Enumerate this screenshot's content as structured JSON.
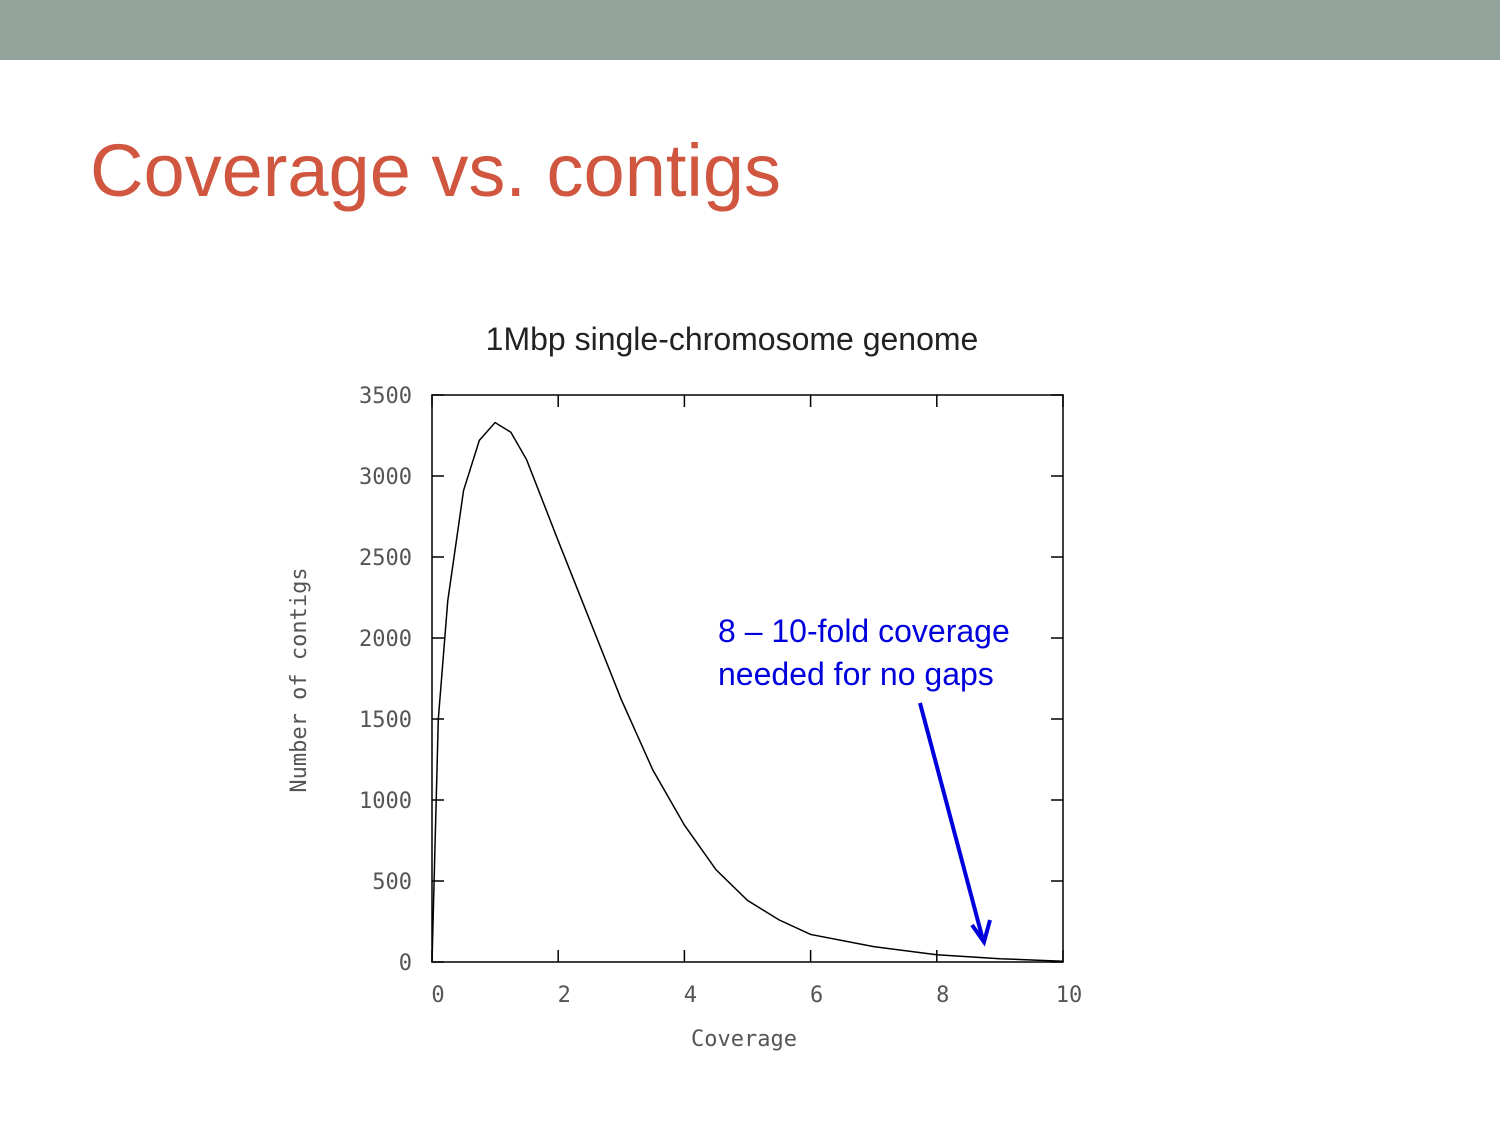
{
  "title": "Coverage vs. contigs",
  "chart_data": {
    "type": "line",
    "title": "1Mbp single-chromosome genome",
    "xlabel": "Coverage",
    "ylabel": "Number of contigs",
    "x": [
      0,
      0.1,
      0.25,
      0.5,
      0.75,
      1,
      1.25,
      1.5,
      2,
      2.5,
      3,
      3.5,
      4,
      4.5,
      5,
      5.5,
      6,
      7,
      8,
      9,
      10
    ],
    "series": [
      {
        "color": "#000000",
        "values": [
          0,
          1500,
          2230,
          2910,
          3220,
          3330,
          3270,
          3100,
          2600,
          2110,
          1620,
          1185,
          845,
          570,
          380,
          260,
          170,
          95,
          45,
          20,
          5
        ]
      }
    ],
    "xlim": [
      0,
      10
    ],
    "xticks": [
      0,
      2,
      4,
      6,
      8,
      10
    ],
    "ylim": [
      0,
      3500
    ],
    "yticks": [
      0,
      500,
      1000,
      1500,
      2000,
      2500,
      3000,
      3500
    ],
    "annotation": [
      "8 – 10-fold coverage",
      "needed for no gaps"
    ],
    "annotation_color": "#0000dd"
  }
}
